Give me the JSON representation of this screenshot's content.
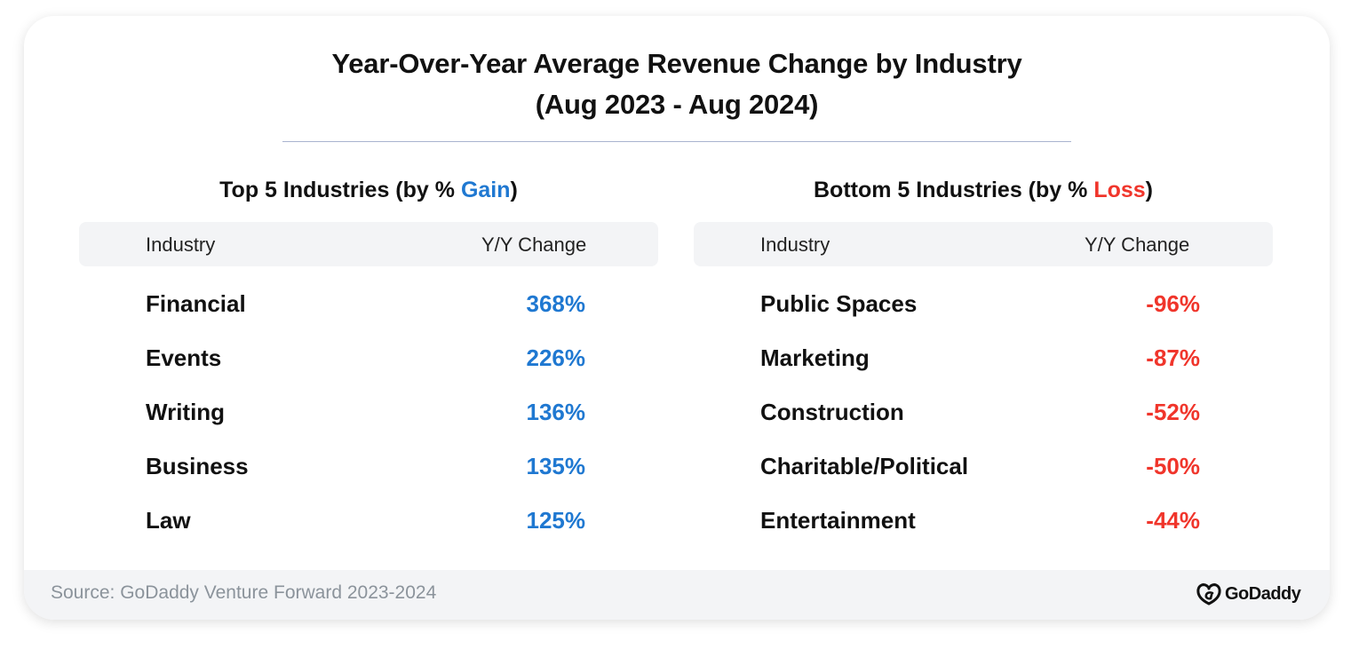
{
  "chart_data": {
    "type": "table",
    "title_line1": "Year-Over-Year Average Revenue Change by Industry",
    "title_line2": "(Aug 2023 - Aug 2024)",
    "tables": [
      {
        "heading_prefix": "Top 5 Industries (by % ",
        "heading_keyword": "Gain",
        "heading_suffix": ")",
        "columns": [
          "Industry",
          "Y/Y Change"
        ],
        "rows": [
          {
            "industry": "Financial",
            "change": "368%",
            "value": 368
          },
          {
            "industry": "Events",
            "change": "226%",
            "value": 226
          },
          {
            "industry": "Writing",
            "change": "136%",
            "value": 136
          },
          {
            "industry": "Business",
            "change": "135%",
            "value": 135
          },
          {
            "industry": "Law",
            "change": "125%",
            "value": 125
          }
        ]
      },
      {
        "heading_prefix": "Bottom 5 Industries (by % ",
        "heading_keyword": "Loss",
        "heading_suffix": ")",
        "columns": [
          "Industry",
          "Y/Y Change"
        ],
        "rows": [
          {
            "industry": "Public Spaces",
            "change": "-96%",
            "value": -96
          },
          {
            "industry": "Marketing",
            "change": "-87%",
            "value": -87
          },
          {
            "industry": "Construction",
            "change": "-52%",
            "value": -52
          },
          {
            "industry": "Charitable/Political",
            "change": "-50%",
            "value": -50
          },
          {
            "industry": "Entertainment",
            "change": "-44%",
            "value": -44
          }
        ]
      }
    ]
  },
  "footer": {
    "source": "Source: GoDaddy Venture Forward 2023-2024",
    "logo_text": "GoDaddy",
    "logo_icon": "godaddy-logo-icon"
  },
  "colors": {
    "gain": "#1f78d1",
    "loss": "#f0352b",
    "header_bg": "#f3f4f6",
    "divider": "#a9b3cf"
  }
}
